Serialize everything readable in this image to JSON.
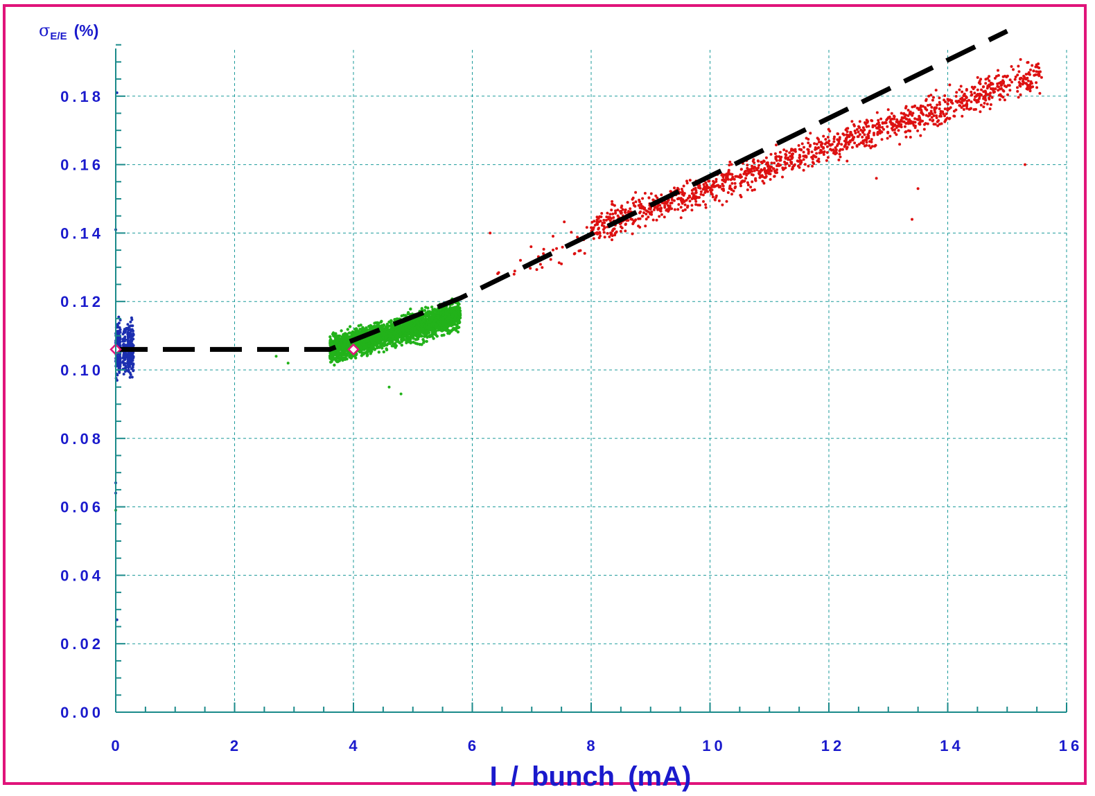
{
  "chart_data": {
    "type": "scatter",
    "ylabel_symbol": "σ",
    "ylabel_sub": "E/E",
    "ylabel_unit": "(%)",
    "xlabel": "I / bunch (mA)",
    "xlim": [
      0,
      16
    ],
    "ylim": [
      0,
      0.2
    ],
    "xticks": [
      "0",
      "2",
      "4",
      "6",
      "8",
      "10",
      "12",
      "14",
      "16"
    ],
    "yticks": [
      "0.00",
      "0.02",
      "0.04",
      "0.06",
      "0.08",
      "0.10",
      "0.12",
      "0.14",
      "0.16",
      "0.18"
    ],
    "grid": true,
    "colors": {
      "frame": "#e0147a",
      "axis": "#1a8a8a",
      "grid": "#1a9a9a",
      "ticklabel": "#1a1acc",
      "series_blue": "#1c2fb0",
      "series_green": "#22b21a",
      "series_red": "#dd1111",
      "fit_line": "#000000",
      "marker": "#e0147a"
    },
    "series": [
      {
        "color": "blue",
        "x_range": [
          0,
          0.3
        ],
        "y_center": 0.106,
        "y_spread": [
          0.084,
          0.134
        ],
        "outliers": [
          [
            0.0,
            0.141
          ],
          [
            0.0,
            0.067
          ],
          [
            0.0,
            0.064
          ],
          [
            0.02,
            0.027
          ],
          [
            0.02,
            0.181
          ]
        ]
      },
      {
        "color": "green",
        "x_range": [
          3.6,
          5.8
        ],
        "y_at_start": 0.106,
        "y_at_end": 0.116,
        "y_spread": 0.004,
        "outliers": [
          [
            2.7,
            0.104
          ],
          [
            2.9,
            0.102
          ],
          [
            4.6,
            0.095
          ],
          [
            4.8,
            0.093
          ],
          [
            0.0,
            0.059
          ]
        ]
      },
      {
        "color": "red",
        "x_range": [
          6.3,
          15.8
        ],
        "y_at_start": 0.131,
        "y_at_end": 0.188,
        "y_spread": 0.005,
        "outliers": [
          [
            6.3,
            0.14
          ],
          [
            13.4,
            0.144
          ],
          [
            13.5,
            0.153
          ],
          [
            15.3,
            0.16
          ],
          [
            12.8,
            0.156
          ],
          [
            7.5,
            0.131
          ]
        ]
      }
    ],
    "fit_line": [
      [
        0,
        0.106
      ],
      [
        3.5,
        0.106
      ],
      [
        3.6,
        0.106
      ],
      [
        5.8,
        0.121
      ],
      [
        15.0,
        0.199
      ]
    ],
    "markers": [
      [
        0,
        0.106
      ],
      [
        4,
        0.106
      ]
    ]
  }
}
